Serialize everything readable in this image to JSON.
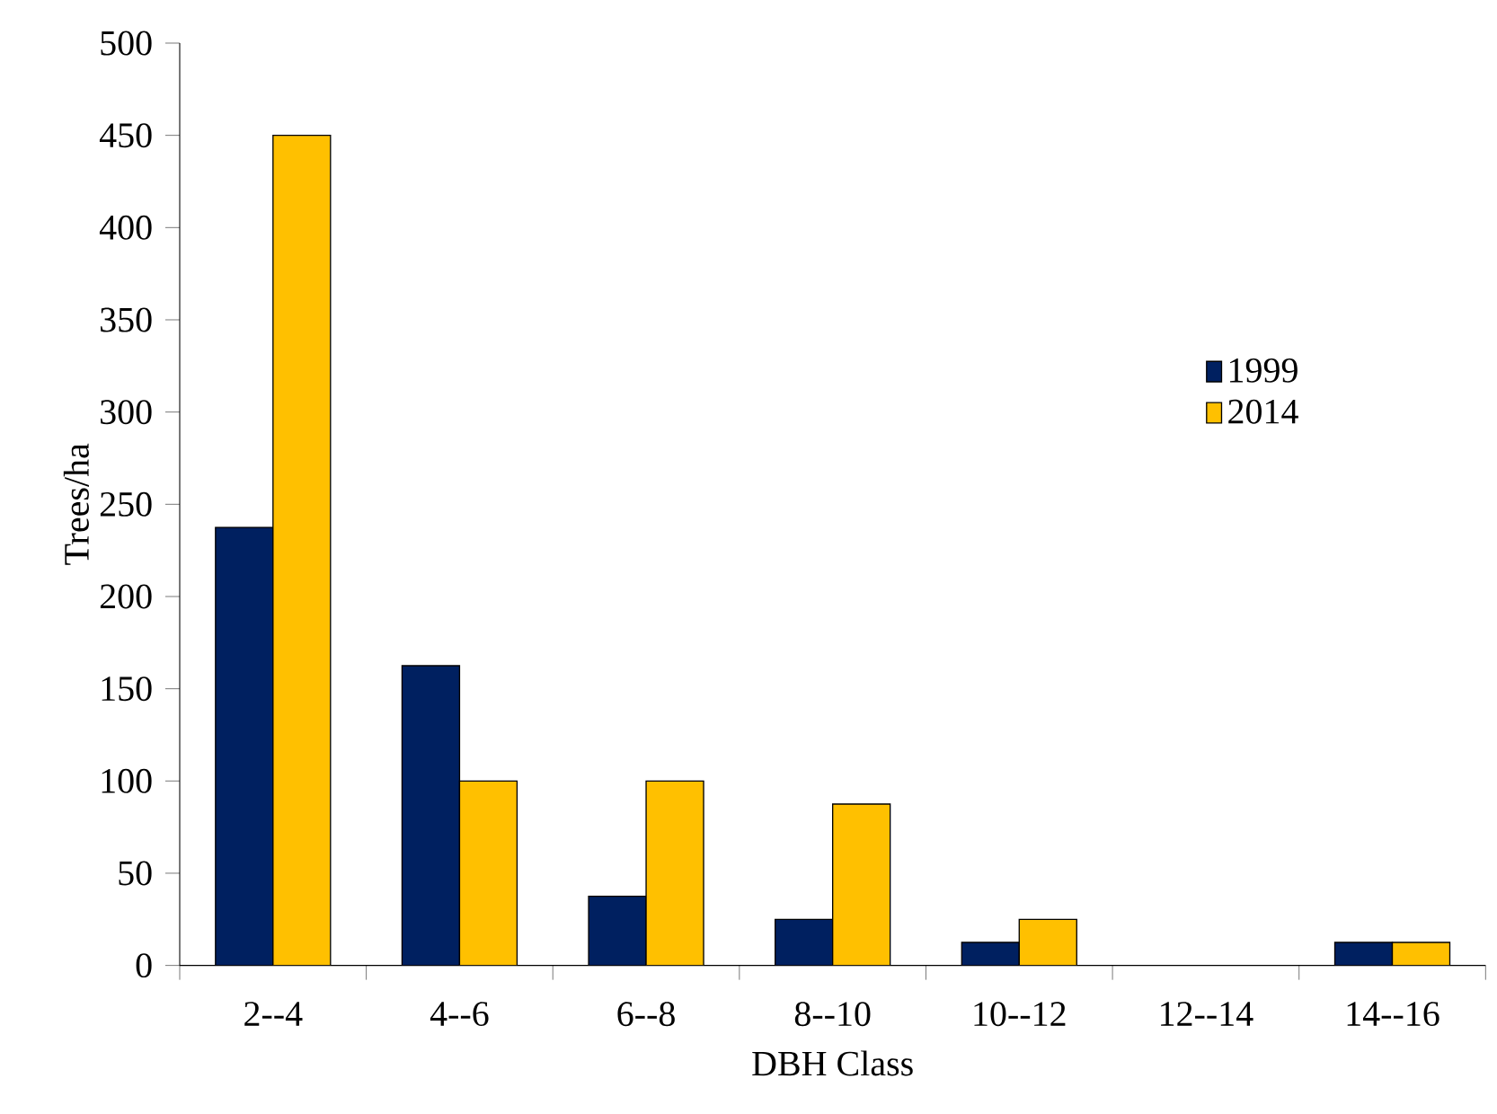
{
  "chart_data": {
    "type": "bar",
    "xlabel": "DBH Class",
    "ylabel": "Trees/ha",
    "categories": [
      "2--4",
      "4--6",
      "6--8",
      "8--10",
      "10--12",
      "12--14",
      "14--16"
    ],
    "series": [
      {
        "name": "1999",
        "color": "#002060",
        "values": [
          237.5,
          162.5,
          37.5,
          25,
          12.5,
          0,
          12.5
        ]
      },
      {
        "name": "2014",
        "color": "#ffc000",
        "values": [
          450,
          100,
          100,
          87.5,
          25,
          0,
          12.5
        ]
      }
    ],
    "ylim": [
      0,
      500
    ],
    "yticks": [
      0,
      50,
      100,
      150,
      200,
      250,
      300,
      350,
      400,
      450,
      500
    ],
    "legend": "right",
    "grid": false
  }
}
